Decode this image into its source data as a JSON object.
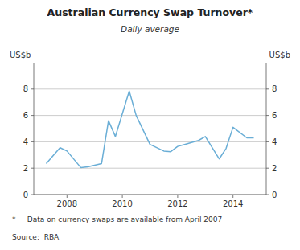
{
  "chart_data": {
    "type": "line",
    "title": "Australian Currency Swap Turnover*",
    "subtitle": "Daily average",
    "y_label": "US$b",
    "y2_label": "US$b",
    "footnote": "*     Data on currency swaps are available from April 2007",
    "source": "Source:  RBA",
    "color": "#6aaed6",
    "x": [
      2007.25,
      2007.75,
      2008.0,
      2008.5,
      2008.75,
      2009.25,
      2009.5,
      2009.75,
      2010.25,
      2010.5,
      2011.0,
      2011.5,
      2011.75,
      2012.0,
      2012.25,
      2012.75,
      2013.0,
      2013.5,
      2013.75,
      2014.0,
      2014.5,
      2014.75
    ],
    "values": [
      2.35,
      3.55,
      3.3,
      2.05,
      2.1,
      2.35,
      5.6,
      4.4,
      7.85,
      6.0,
      3.8,
      3.3,
      3.25,
      3.65,
      3.8,
      4.1,
      4.4,
      2.7,
      3.5,
      5.1,
      4.3,
      4.3
    ],
    "xlim": [
      2006.8,
      2015.2
    ],
    "xticks": [
      2008,
      2010,
      2012,
      2014
    ],
    "ylim": [
      0,
      10
    ],
    "yticks": [
      0,
      2,
      4,
      6,
      8
    ],
    "y2lim": [
      0,
      10
    ],
    "y2ticks": [
      0,
      2,
      4,
      6,
      8
    ],
    "grid": true
  }
}
